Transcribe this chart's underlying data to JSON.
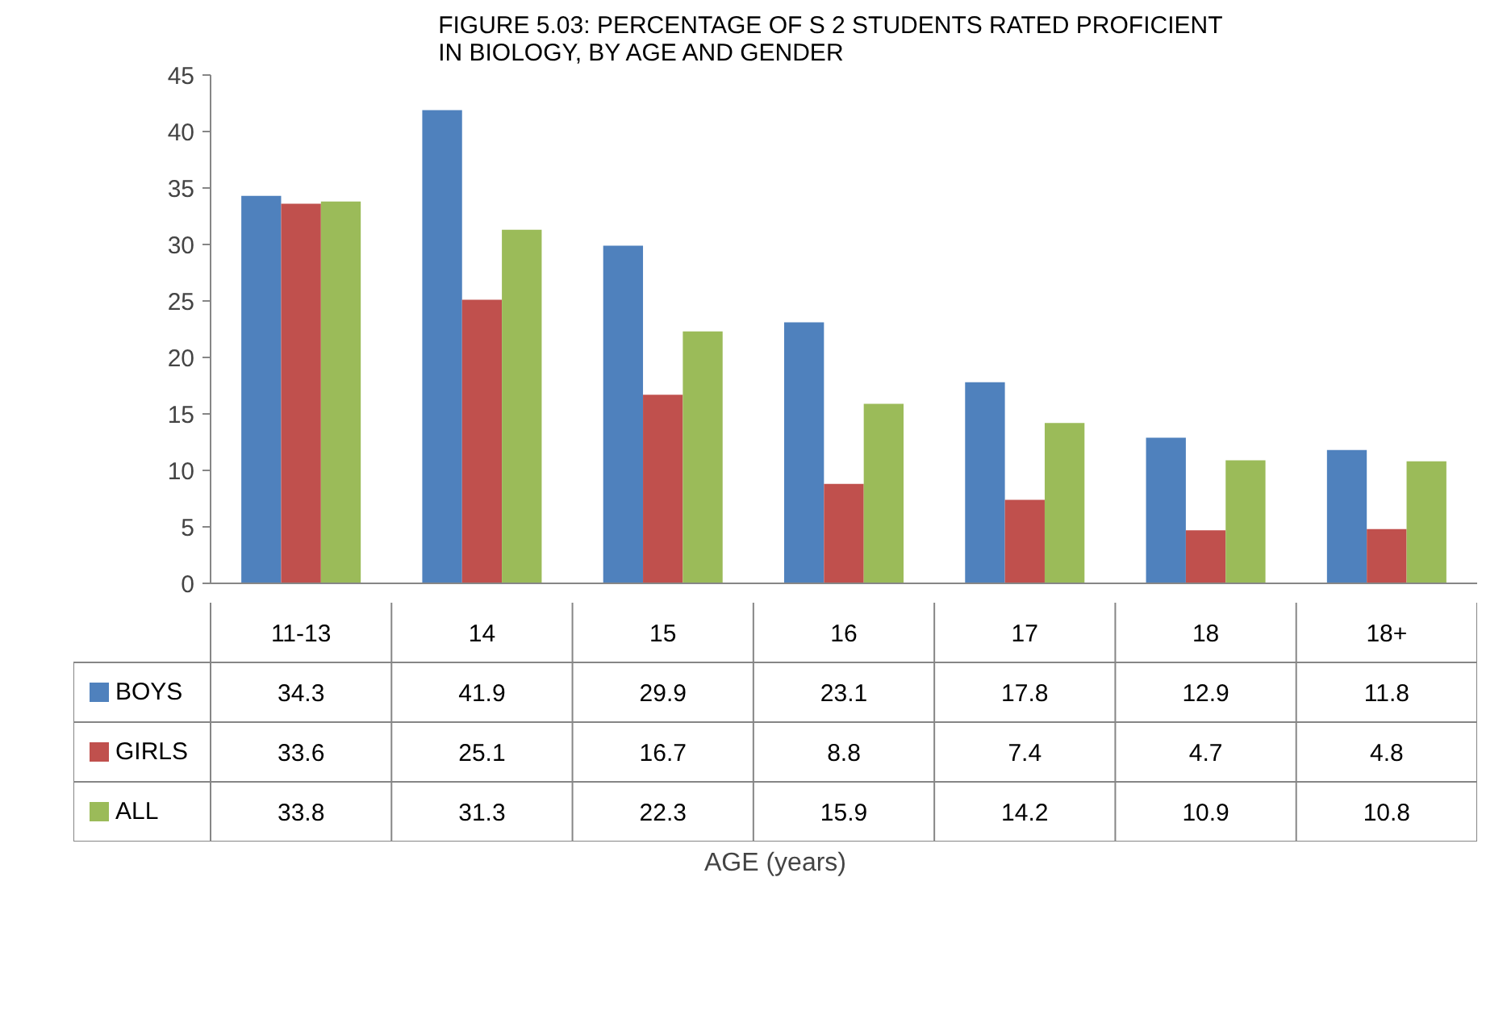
{
  "chart_data": {
    "type": "bar",
    "title": "FIGURE 5.03:  PERCENTAGE  OF S 2 STUDENTS  RATED  PROFICIENT  IN BIOLOGY, BY AGE AND GENDER",
    "annotations": [
      "AGE (years)"
    ],
    "categories": [
      "11-13",
      "14",
      "15",
      "16",
      "17",
      "18",
      "18+"
    ],
    "series": [
      {
        "name": "BOYS",
        "color": "#4f81bd",
        "values": [
          34.3,
          41.9,
          29.9,
          23.1,
          17.8,
          12.9,
          11.8
        ]
      },
      {
        "name": "GIRLS",
        "color": "#c0504d",
        "values": [
          33.6,
          25.1,
          16.7,
          8.8,
          7.4,
          4.7,
          4.8
        ]
      },
      {
        "name": "ALL",
        "color": "#9bbb59",
        "values": [
          33.8,
          31.3,
          22.3,
          15.9,
          14.2,
          10.9,
          10.8
        ]
      }
    ],
    "ylim": [
      0,
      45
    ],
    "yticks": [
      0,
      5,
      10,
      15,
      20,
      25,
      30,
      35,
      40,
      45
    ],
    "grid": false,
    "legend": "bottom",
    "data_labels": true
  }
}
